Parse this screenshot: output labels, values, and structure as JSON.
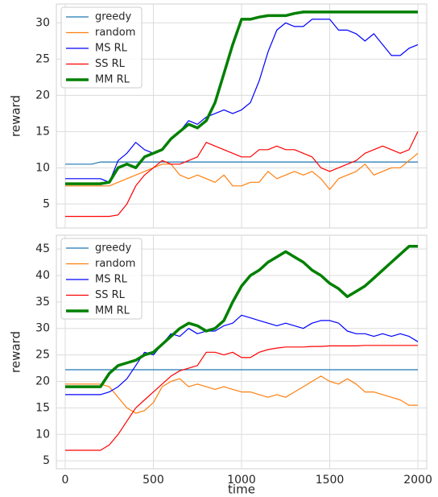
{
  "chart_data": [
    {
      "type": "line",
      "ylabel": "reward",
      "x": [
        0,
        50,
        100,
        150,
        200,
        250,
        300,
        350,
        400,
        450,
        500,
        550,
        600,
        650,
        700,
        750,
        800,
        850,
        900,
        950,
        1000,
        1050,
        1100,
        1150,
        1200,
        1250,
        1300,
        1350,
        1400,
        1450,
        1500,
        1550,
        1600,
        1650,
        1700,
        1750,
        1800,
        1850,
        1900,
        1950,
        2000
      ],
      "xlim": [
        -50,
        2050
      ],
      "xticks": [
        0,
        500,
        1000,
        1500,
        2000
      ],
      "ylim": [
        1.7,
        32.6
      ],
      "yticks": [
        5,
        10,
        15,
        20,
        25,
        30
      ],
      "grid": true,
      "legend": "upper left",
      "series": [
        {
          "name": "greedy",
          "color": "#1f77b4",
          "width": 1.2,
          "values": [
            10.5,
            10.5,
            10.5,
            10.5,
            10.8,
            10.8,
            10.8,
            10.8,
            10.8,
            10.8,
            10.8,
            10.8,
            10.8,
            10.8,
            10.8,
            10.8,
            10.8,
            10.8,
            10.8,
            10.8,
            10.8,
            10.8,
            10.8,
            10.8,
            10.8,
            10.8,
            10.8,
            10.8,
            10.8,
            10.8,
            10.8,
            10.8,
            10.8,
            10.8,
            10.8,
            10.8,
            10.8,
            10.8,
            10.8,
            10.8,
            10.8
          ]
        },
        {
          "name": "random",
          "color": "#ff7f0e",
          "width": 1.2,
          "values": [
            7.5,
            7.5,
            7.5,
            7.5,
            7.5,
            7.5,
            8,
            8.5,
            9,
            9.5,
            10,
            10.5,
            10.5,
            9,
            8.5,
            9,
            8.5,
            8,
            9,
            7.5,
            7.5,
            8,
            8,
            9.5,
            8.5,
            9,
            9.5,
            9,
            9.5,
            8.5,
            7,
            8.5,
            9,
            9.5,
            10.5,
            9,
            9.5,
            10,
            10,
            11,
            12
          ]
        },
        {
          "name": "MS RL",
          "color": "#0000ff",
          "width": 1.2,
          "values": [
            8.5,
            8.5,
            8.5,
            8.5,
            8.5,
            8,
            11,
            12,
            13.5,
            12.5,
            12,
            12.5,
            14,
            15,
            16.5,
            16,
            17,
            17.5,
            18,
            17.5,
            18,
            19,
            22,
            26,
            29,
            30,
            29.5,
            29.5,
            30.5,
            30.5,
            30.5,
            29,
            29,
            28.5,
            27.5,
            28.5,
            27,
            25.5,
            25.5,
            26.5,
            27
          ]
        },
        {
          "name": "SS RL",
          "color": "#ff0000",
          "width": 1.2,
          "values": [
            3.3,
            3.3,
            3.3,
            3.3,
            3.3,
            3.3,
            3.5,
            5,
            7.5,
            9,
            10,
            11,
            10.5,
            10.5,
            11,
            11.5,
            13.5,
            13,
            12.5,
            12,
            11.5,
            11.5,
            12.5,
            12.5,
            13,
            12.5,
            12.5,
            12,
            11.5,
            10,
            9.5,
            10,
            10.5,
            11,
            12,
            12.5,
            13,
            12.5,
            12,
            12.5,
            15
          ]
        },
        {
          "name": "MM RL",
          "color": "#008000",
          "width": 3.5,
          "values": [
            7.8,
            7.8,
            7.8,
            7.8,
            7.8,
            8,
            10,
            10.5,
            10,
            11.5,
            12,
            12.5,
            14,
            15,
            16,
            15.5,
            16.5,
            19,
            23,
            27,
            30.5,
            30.5,
            30.8,
            31,
            31,
            31,
            31.3,
            31.5,
            31.5,
            31.5,
            31.5,
            31.5,
            31.5,
            31.5,
            31.5,
            31.5,
            31.5,
            31.5,
            31.5,
            31.5,
            31.5
          ]
        }
      ]
    },
    {
      "type": "line",
      "ylabel": "reward",
      "xlabel": "time",
      "x": [
        0,
        50,
        100,
        150,
        200,
        250,
        300,
        350,
        400,
        450,
        500,
        550,
        600,
        650,
        700,
        750,
        800,
        850,
        900,
        950,
        1000,
        1050,
        1100,
        1150,
        1200,
        1250,
        1300,
        1350,
        1400,
        1450,
        1500,
        1550,
        1600,
        1650,
        1700,
        1750,
        1800,
        1850,
        1900,
        1950,
        2000
      ],
      "xlim": [
        -50,
        2050
      ],
      "xticks": [
        0,
        500,
        1000,
        1500,
        2000
      ],
      "ylim": [
        3.5,
        47.6
      ],
      "yticks": [
        5,
        10,
        15,
        20,
        25,
        30,
        35,
        40,
        45
      ],
      "grid": true,
      "legend": "upper left",
      "series": [
        {
          "name": "greedy",
          "color": "#1f77b4",
          "width": 1.2,
          "values": [
            22.2,
            22.2,
            22.2,
            22.2,
            22.2,
            22.2,
            22.2,
            22.2,
            22.2,
            22.2,
            22.2,
            22.2,
            22.2,
            22.2,
            22.2,
            22.2,
            22.2,
            22.2,
            22.2,
            22.2,
            22.2,
            22.2,
            22.2,
            22.2,
            22.2,
            22.2,
            22.2,
            22.2,
            22.2,
            22.2,
            22.2,
            22.2,
            22.2,
            22.2,
            22.2,
            22.2,
            22.2,
            22.2,
            22.2,
            22.2,
            22.2
          ]
        },
        {
          "name": "random",
          "color": "#ff7f0e",
          "width": 1.2,
          "values": [
            19.5,
            19.5,
            19.5,
            19.5,
            19.5,
            19,
            17,
            15,
            14,
            14.5,
            16,
            19,
            20,
            20.5,
            19,
            19.5,
            19,
            18.5,
            19,
            18.5,
            18,
            18,
            17.5,
            17,
            17.5,
            17,
            18,
            19,
            20,
            21,
            20,
            19.5,
            20.5,
            19.5,
            18,
            18,
            17.5,
            17,
            16.5,
            15.5,
            15.5
          ]
        },
        {
          "name": "MS RL",
          "color": "#0000ff",
          "width": 1.2,
          "values": [
            17.5,
            17.5,
            17.5,
            17.5,
            17.5,
            18,
            19,
            20.5,
            23,
            25.5,
            25,
            27,
            29,
            28.5,
            30,
            29,
            29.5,
            29.5,
            30.5,
            31,
            32.5,
            32,
            31.5,
            31,
            30.5,
            31,
            30.5,
            30,
            31,
            31.5,
            31.5,
            31,
            29.5,
            29,
            29,
            28.5,
            29,
            28.5,
            29,
            28.5,
            27.5
          ]
        },
        {
          "name": "SS RL",
          "color": "#ff0000",
          "width": 1.2,
          "values": [
            7,
            7,
            7,
            7,
            7,
            8,
            10,
            12.5,
            15,
            16.5,
            18,
            19.5,
            21,
            22,
            22.5,
            23,
            25.5,
            25.5,
            25,
            25.5,
            24.5,
            24.5,
            25.5,
            26,
            26.3,
            26.5,
            26.5,
            26.5,
            26.6,
            26.6,
            26.7,
            26.7,
            26.7,
            26.7,
            26.8,
            26.8,
            26.8,
            26.8,
            26.8,
            26.8,
            26.8
          ]
        },
        {
          "name": "MM RL",
          "color": "#008000",
          "width": 3.5,
          "values": [
            19,
            19,
            19,
            19,
            19,
            21.5,
            23,
            23.5,
            24,
            25,
            25.5,
            27,
            28.5,
            30,
            31,
            30.5,
            29.5,
            30,
            31.5,
            35,
            38,
            40,
            41,
            42.5,
            43.5,
            44.5,
            43.5,
            42.5,
            41,
            40,
            38.5,
            37.5,
            36,
            37,
            38,
            39.5,
            41,
            42.5,
            44,
            45.5,
            45.5
          ]
        }
      ]
    }
  ]
}
